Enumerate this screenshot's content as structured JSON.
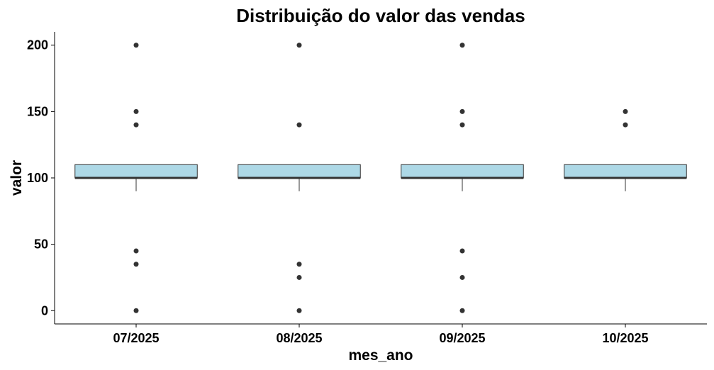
{
  "chart_data": {
    "type": "box",
    "title": "Distribuição do valor das vendas",
    "xlabel": "mes_ano",
    "ylabel": "valor",
    "categories": [
      "07/2025",
      "08/2025",
      "09/2025",
      "10/2025"
    ],
    "yticks": [
      0,
      50,
      100,
      150,
      200
    ],
    "ylim": [
      -10,
      210
    ],
    "grid": false,
    "legend": "none",
    "colors": {
      "box_fill": "#add8e6",
      "box_stroke": "#333333",
      "outlier": "#333333"
    },
    "boxes": [
      {
        "category": "07/2025",
        "min": 90,
        "q1": 100,
        "median": 100,
        "q3": 110,
        "max": 110,
        "outliers": [
          0,
          35,
          45,
          140,
          150,
          200
        ]
      },
      {
        "category": "08/2025",
        "min": 90,
        "q1": 100,
        "median": 100,
        "q3": 110,
        "max": 110,
        "outliers": [
          0,
          25,
          35,
          140,
          200
        ]
      },
      {
        "category": "09/2025",
        "min": 90,
        "q1": 100,
        "median": 100,
        "q3": 110,
        "max": 110,
        "outliers": [
          0,
          25,
          45,
          140,
          150,
          200
        ]
      },
      {
        "category": "10/2025",
        "min": 90,
        "q1": 100,
        "median": 100,
        "q3": 110,
        "max": 110,
        "outliers": [
          140,
          150
        ]
      }
    ]
  }
}
